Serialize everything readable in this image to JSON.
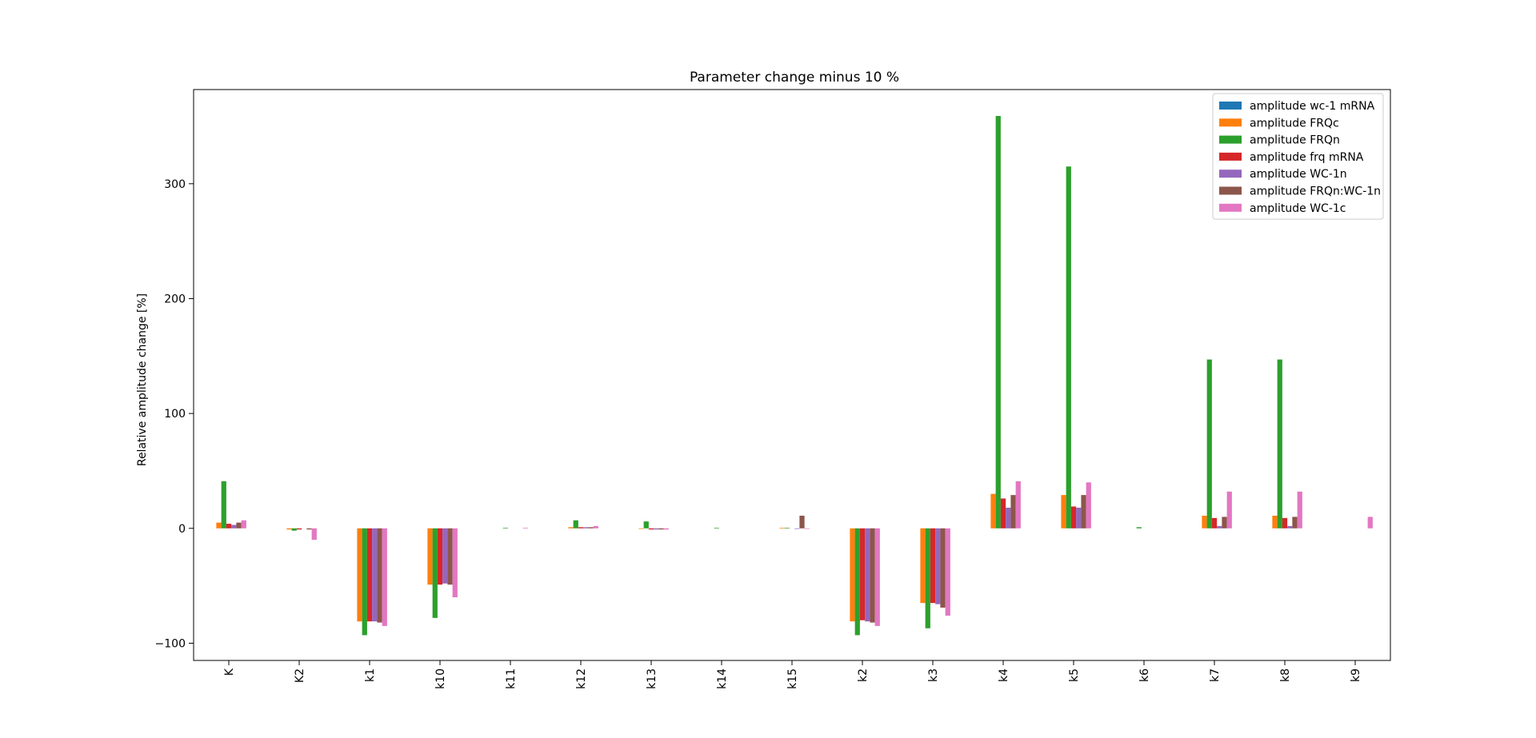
{
  "chart_data": {
    "type": "bar",
    "title": "Parameter change minus 10 %",
    "xlabel": "",
    "ylabel": "Relative amplitude change [%]",
    "ylim": [
      -115,
      382
    ],
    "yticks": [
      -100,
      0,
      100,
      200,
      300
    ],
    "grid": false,
    "legend_position": "top-right",
    "categories": [
      "K",
      "K2",
      "k1",
      "k10",
      "k11",
      "k12",
      "k13",
      "k14",
      "k15",
      "k2",
      "k3",
      "k4",
      "k5",
      "k6",
      "k7",
      "k8",
      "k9"
    ],
    "series": [
      {
        "name": "amplitude wc-1 mRNA",
        "color": "#1f77b4",
        "values": [
          0,
          0,
          0,
          0,
          0,
          0,
          0,
          0,
          0,
          0,
          0,
          0,
          0,
          0,
          0,
          0,
          0
        ]
      },
      {
        "name": "amplitude FRQc",
        "color": "#ff7f0e",
        "values": [
          5,
          -1,
          -81,
          -49,
          0,
          1,
          -0.5,
          0,
          0.5,
          -81,
          -65,
          30,
          29,
          0,
          11,
          11,
          0
        ]
      },
      {
        "name": "amplitude FRQn",
        "color": "#2ca02c",
        "values": [
          41,
          -2,
          -93,
          -78,
          0.5,
          7,
          6,
          0.5,
          0.5,
          -93,
          -87,
          359,
          315,
          1,
          147,
          147,
          0
        ]
      },
      {
        "name": "amplitude frq mRNA",
        "color": "#d62728",
        "values": [
          4,
          -1,
          -81,
          -49,
          0,
          1,
          -1,
          0,
          0,
          -80,
          -65,
          26,
          19,
          0,
          9,
          9,
          0
        ]
      },
      {
        "name": "amplitude WC-1n",
        "color": "#9467bd",
        "values": [
          3,
          0,
          -81,
          -48,
          0,
          1,
          -1,
          0,
          -0.5,
          -81,
          -66,
          18,
          18,
          0,
          2,
          2,
          0
        ]
      },
      {
        "name": "amplitude FRQn:WC-1n",
        "color": "#8c564b",
        "values": [
          5,
          -1,
          -82,
          -49,
          0,
          1,
          -1,
          0,
          11,
          -82,
          -69,
          29,
          29,
          0,
          10,
          10,
          0
        ]
      },
      {
        "name": "amplitude WC-1c",
        "color": "#e377c2",
        "values": [
          7,
          -10,
          -85,
          -60,
          0.5,
          2,
          -1,
          0,
          -0.5,
          -85,
          -76,
          41,
          40,
          0,
          32,
          32,
          10
        ]
      }
    ]
  }
}
